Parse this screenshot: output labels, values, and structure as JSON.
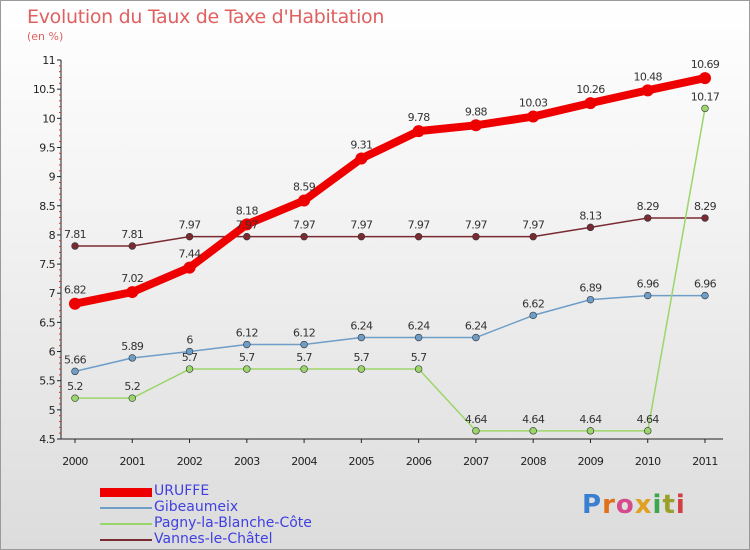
{
  "title": "Evolution du Taux de Taxe d'Habitation",
  "subtitle": "(en %)",
  "logo": "Proxiti",
  "chart_data": {
    "type": "line",
    "title": "Evolution du Taux de Taxe d'Habitation",
    "ylabel": "(en %)",
    "x": [
      2000,
      2001,
      2002,
      2003,
      2004,
      2005,
      2006,
      2007,
      2008,
      2009,
      2010,
      2011
    ],
    "ylim": [
      4.5,
      11
    ],
    "yticks": [
      4.5,
      5,
      5.5,
      6,
      6.5,
      7,
      7.5,
      8,
      8.5,
      9,
      9.5,
      10,
      10.5,
      11
    ],
    "grid": false,
    "legend": "bottom-left",
    "series": [
      {
        "name": "URUFFE",
        "color": "#ee0000",
        "values": [
          6.82,
          7.02,
          7.44,
          8.18,
          8.59,
          9.31,
          9.78,
          9.88,
          10.03,
          10.26,
          10.48,
          10.69
        ]
      },
      {
        "name": "Gibeaumeix",
        "color": "#6e9ec8",
        "values": [
          5.66,
          5.89,
          6,
          6.12,
          6.12,
          6.24,
          6.24,
          6.24,
          6.62,
          6.89,
          6.96,
          6.96
        ]
      },
      {
        "name": "Pagny-la-Blanche-Côte",
        "color": "#9ad66a",
        "values": [
          5.2,
          5.2,
          5.7,
          5.7,
          5.7,
          5.7,
          5.7,
          4.64,
          4.64,
          4.64,
          4.64,
          10.17
        ]
      },
      {
        "name": "Vannes-le-Châtel",
        "color": "#7a2a32",
        "values": [
          7.81,
          7.81,
          7.97,
          7.97,
          7.97,
          7.97,
          7.97,
          7.97,
          7.97,
          8.13,
          8.29,
          8.29
        ]
      }
    ]
  }
}
